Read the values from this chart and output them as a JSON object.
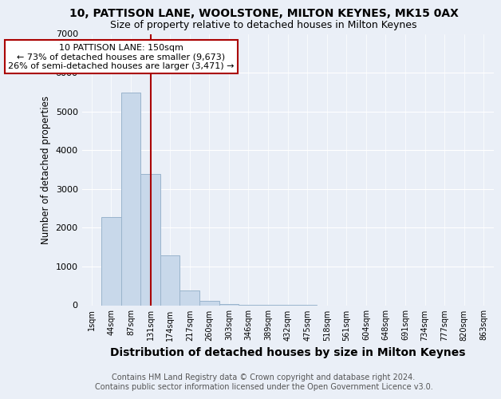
{
  "title1": "10, PATTISON LANE, WOOLSTONE, MILTON KEYNES, MK15 0AX",
  "title2": "Size of property relative to detached houses in Milton Keynes",
  "xlabel": "Distribution of detached houses by size in Milton Keynes",
  "ylabel": "Number of detached properties",
  "footer": "Contains HM Land Registry data © Crown copyright and database right 2024.\nContains public sector information licensed under the Open Government Licence v3.0.",
  "bar_labels": [
    "1sqm",
    "44sqm",
    "87sqm",
    "131sqm",
    "174sqm",
    "217sqm",
    "260sqm",
    "303sqm",
    "346sqm",
    "389sqm",
    "432sqm",
    "475sqm",
    "518sqm",
    "561sqm",
    "604sqm",
    "648sqm",
    "691sqm",
    "734sqm",
    "777sqm",
    "820sqm",
    "863sqm"
  ],
  "bar_values": [
    0,
    2270,
    5480,
    3380,
    1290,
    390,
    110,
    40,
    10,
    5,
    2,
    1,
    0,
    0,
    0,
    0,
    0,
    0,
    0,
    0,
    0
  ],
  "bar_color": "#c8d8ea",
  "bar_edgecolor": "#9ab4cc",
  "vline_x": 3,
  "vline_color": "#aa0000",
  "annotation_text": "10 PATTISON LANE: 150sqm\n← 73% of detached houses are smaller (9,673)\n26% of semi-detached houses are larger (3,471) →",
  "annotation_box_facecolor": "#ffffff",
  "annotation_box_edgecolor": "#aa0000",
  "ylim": [
    0,
    7000
  ],
  "yticks": [
    0,
    1000,
    2000,
    3000,
    4000,
    5000,
    6000,
    7000
  ],
  "bg_color": "#eaeff7",
  "plot_bg_color": "#eaeff7",
  "title1_fontsize": 10,
  "title2_fontsize": 9,
  "xlabel_fontsize": 10,
  "ylabel_fontsize": 8.5,
  "tick_fontsize": 8,
  "xtick_fontsize": 7,
  "footer_fontsize": 7,
  "annotation_fontsize": 8
}
